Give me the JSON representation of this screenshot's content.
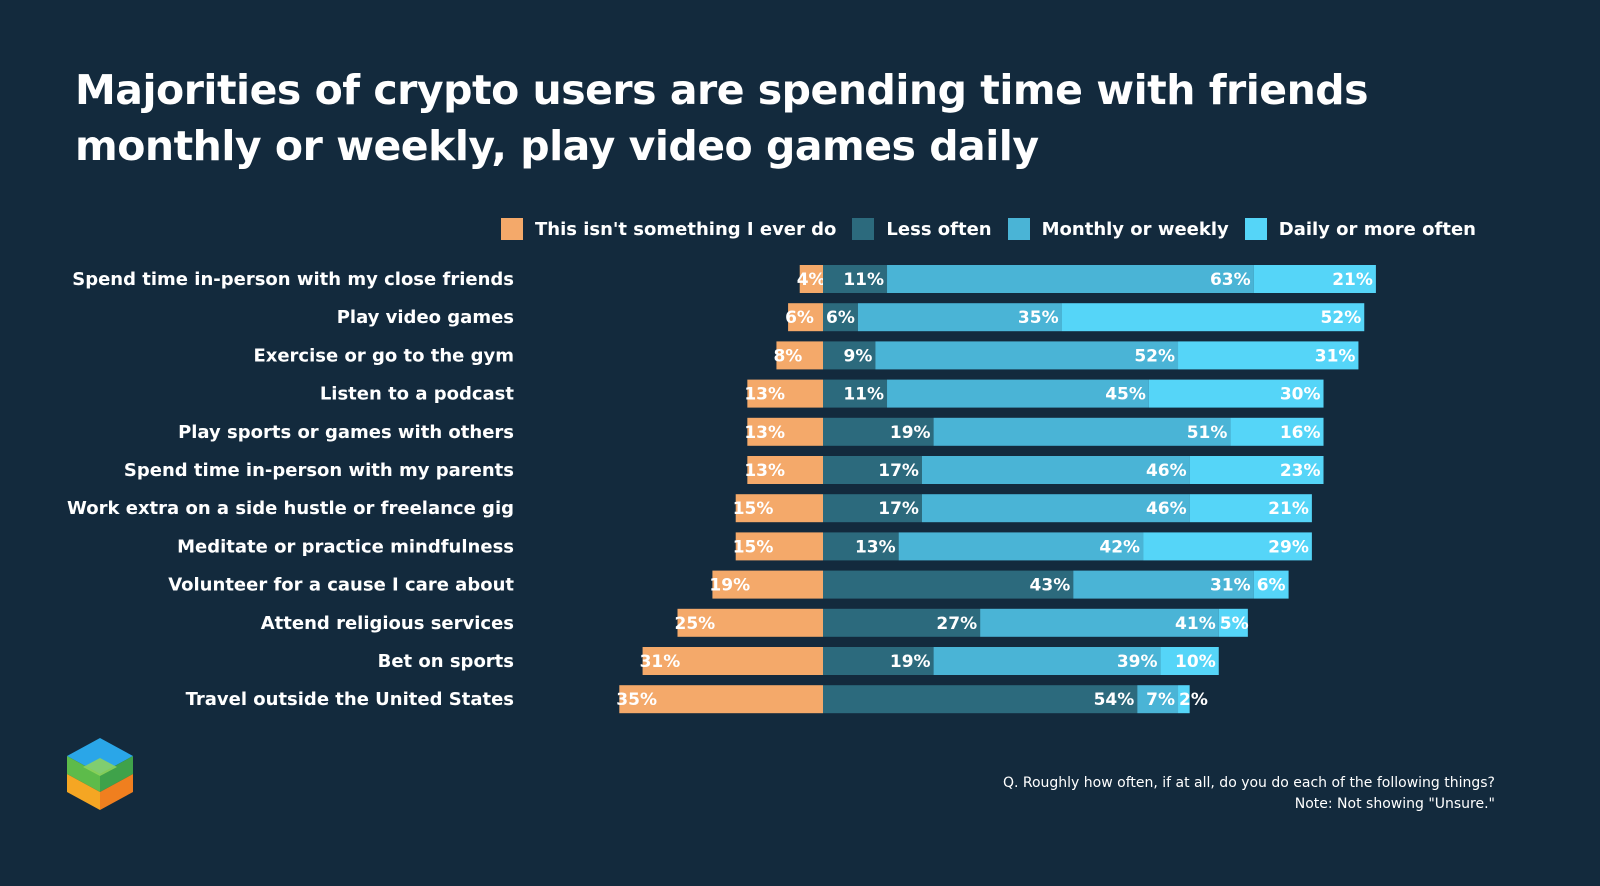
{
  "title": "Majorities of crypto users are spending time with friends monthly or weekly, play video games daily",
  "footnote": {
    "question": "Q. Roughly how often, if at all, do you do each of the following things?",
    "note": "Note: Not showing \"Unsure.\""
  },
  "logo_icon": "cube-logo-icon",
  "colors": {
    "never": "#f4a96a",
    "less": "#2c6a7d",
    "monthly": "#4ab4d6",
    "daily": "#55d5f8",
    "background": "#132a3d"
  },
  "chart_data": {
    "type": "bar",
    "orientation": "horizontal",
    "stacked": "diverging",
    "title": "Majorities of crypto users are spending time with friends monthly or weekly, play video games daily",
    "legend_position": "top-right",
    "categories": [
      "Spend time in-person with my close friends",
      "Play video games",
      "Exercise or go to the gym",
      "Listen to a podcast",
      "Play sports or games with others",
      "Spend time in-person with my parents",
      "Work extra on a side hustle or freelance gig",
      "Meditate or practice mindfulness",
      "Volunteer for a cause I care about",
      "Attend religious services",
      "Bet on sports",
      "Travel outside the United States"
    ],
    "series": [
      {
        "key": "never",
        "name": "This isn't something I ever do",
        "side": "negative",
        "values": [
          4,
          6,
          8,
          13,
          13,
          13,
          15,
          15,
          19,
          25,
          31,
          35
        ]
      },
      {
        "key": "less",
        "name": "Less often",
        "side": "positive",
        "values": [
          11,
          6,
          9,
          11,
          19,
          17,
          17,
          13,
          43,
          27,
          19,
          54
        ]
      },
      {
        "key": "monthly",
        "name": "Monthly or weekly",
        "side": "positive",
        "values": [
          63,
          35,
          52,
          45,
          51,
          46,
          46,
          42,
          31,
          41,
          39,
          7
        ]
      },
      {
        "key": "daily",
        "name": "Daily or more often",
        "side": "positive",
        "values": [
          21,
          52,
          31,
          30,
          16,
          23,
          21,
          29,
          6,
          5,
          10,
          2
        ]
      }
    ]
  }
}
